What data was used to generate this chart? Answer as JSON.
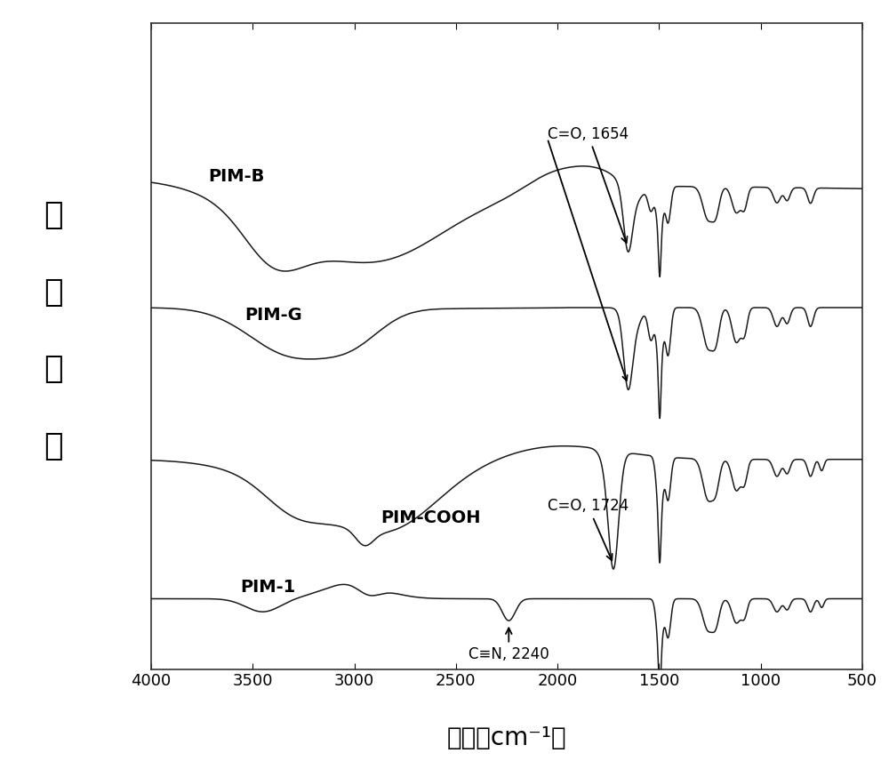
{
  "xlabel": "波数（cm⁻¹）",
  "ylabel": "信号强度",
  "xlabel_fontsize": 20,
  "ylabel_fontsize": 26,
  "background_color": "#ffffff",
  "line_color": "#1a1a1a",
  "labels": [
    "PIM-1",
    "PIM-COOH",
    "PIM-G",
    "PIM-B"
  ],
  "label_fontsize": 14
}
